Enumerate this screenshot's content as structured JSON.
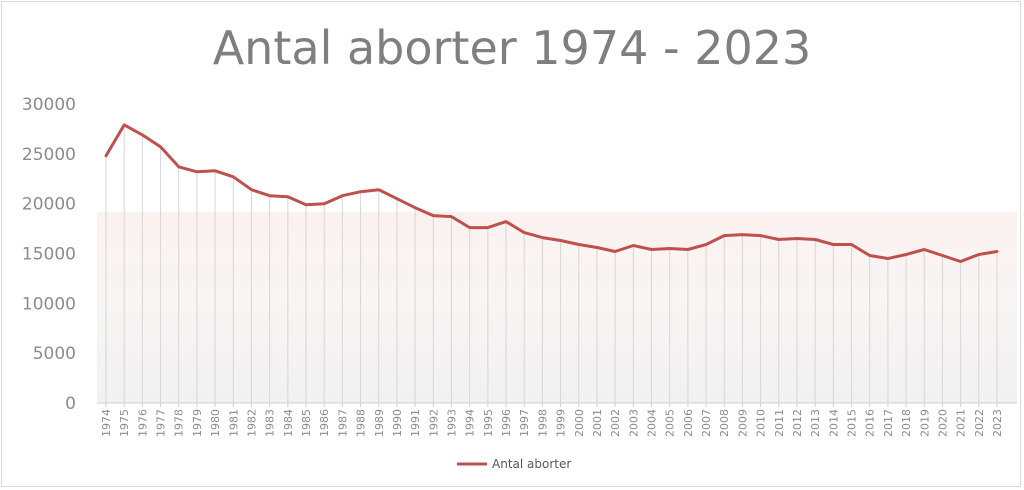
{
  "chart_data": {
    "type": "line",
    "title": "Antal aborter 1974 - 2023",
    "xlabel": "",
    "ylabel": "",
    "ylim": [
      0,
      30000
    ],
    "yticks": [
      "0",
      "5000",
      "10000",
      "15000",
      "20000",
      "25000",
      "30000"
    ],
    "grid": false,
    "drop_lines": true,
    "legend_position": "bottom",
    "line_color": "#c0504d",
    "categories": [
      "1974",
      "1975",
      "1976",
      "1977",
      "1978",
      "1979",
      "1980",
      "1981",
      "1982",
      "1983",
      "1984",
      "1985",
      "1986",
      "1987",
      "1988",
      "1989",
      "1990",
      "1991",
      "1992",
      "1993",
      "1994",
      "1995",
      "1996",
      "1997",
      "1998",
      "1999",
      "2000",
      "2001",
      "2002",
      "2003",
      "2004",
      "2005",
      "2006",
      "2007",
      "2008",
      "2009",
      "2010",
      "2011",
      "2012",
      "2013",
      "2014",
      "2015",
      "2016",
      "2017",
      "2018",
      "2019",
      "2020",
      "2021",
      "2022",
      "2023"
    ],
    "series": [
      {
        "name": "Antal aborter",
        "values": [
          24800,
          27900,
          26900,
          25700,
          23700,
          23200,
          23300,
          22700,
          21400,
          20800,
          20700,
          19900,
          20000,
          20800,
          21200,
          21400,
          20500,
          19600,
          18800,
          18700,
          17600,
          17600,
          18200,
          17100,
          16600,
          16300,
          15900,
          15600,
          15200,
          15800,
          15400,
          15500,
          15400,
          15900,
          16800,
          16900,
          16800,
          16400,
          16500,
          16400,
          15900,
          15900,
          14800,
          14500,
          14900,
          15400,
          14800,
          14200,
          14900,
          15200
        ]
      }
    ]
  }
}
